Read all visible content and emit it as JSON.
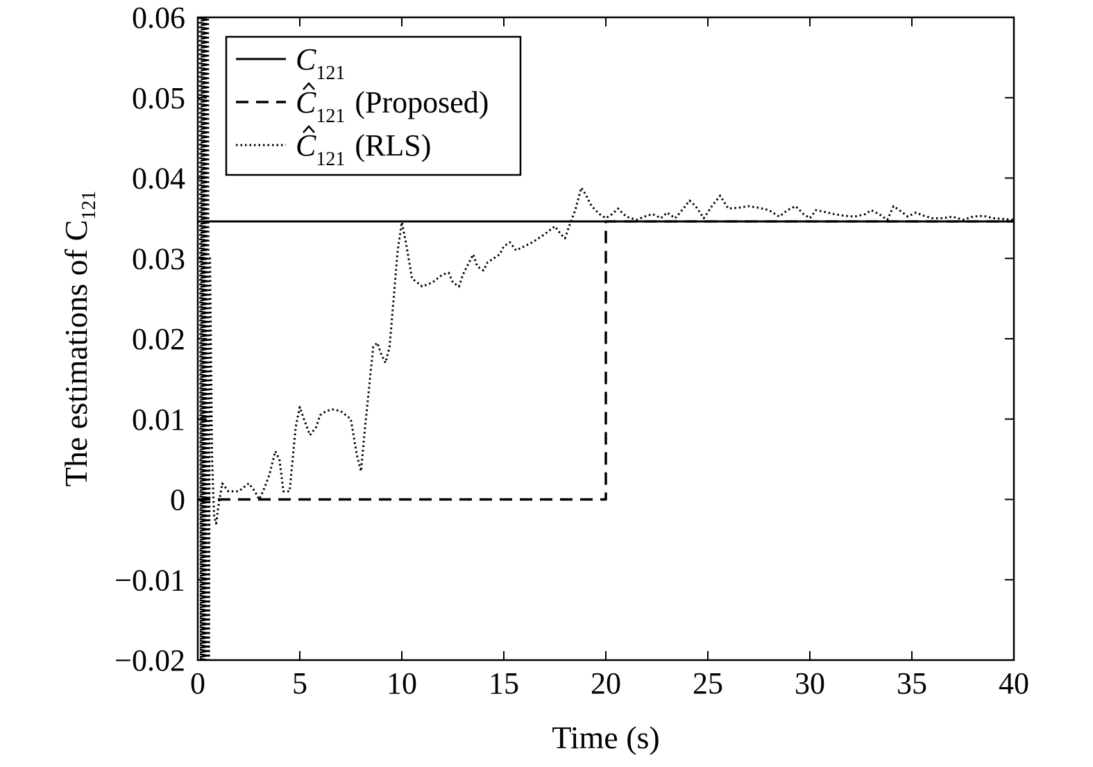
{
  "chart_data": {
    "type": "line",
    "xlabel": "Time (s)",
    "ylabel": "The estimations of C",
    "ylabel_subscript": "121",
    "xlim": [
      0,
      40
    ],
    "ylim": [
      -0.02,
      0.06
    ],
    "x_ticks": [
      0,
      5,
      10,
      15,
      20,
      25,
      30,
      35,
      40
    ],
    "x_tick_labels": [
      "0",
      "5",
      "10",
      "15",
      "20",
      "25",
      "30",
      "35",
      "40"
    ],
    "y_ticks": [
      -0.02,
      -0.01,
      0,
      0.01,
      0.02,
      0.03,
      0.04,
      0.05,
      0.06
    ],
    "y_tick_labels": [
      "−0.02",
      "−0.01",
      "0",
      "0.01",
      "0.02",
      "0.03",
      "0.04",
      "0.05",
      "0.06"
    ],
    "grid": false,
    "legend_position": "top-left",
    "series": [
      {
        "name": "C",
        "name_subscript": "121",
        "hat": false,
        "suffix": "",
        "style": "solid",
        "x": [
          0,
          40
        ],
        "y": [
          0.0346,
          0.0346
        ]
      },
      {
        "name": "C",
        "name_subscript": "121",
        "hat": true,
        "suffix": "(Proposed)",
        "style": "dashed",
        "x": [
          0,
          20,
          20,
          40
        ],
        "y": [
          0,
          0,
          0.0346,
          0.0346
        ]
      },
      {
        "name": "C",
        "name_subscript": "121",
        "hat": true,
        "suffix": "(RLS)",
        "style": "dotted",
        "x": [
          0.1,
          0.15,
          0.2,
          0.25,
          0.3,
          0.35,
          0.4,
          0.45,
          0.5,
          0.55,
          0.6,
          0.7,
          0.8,
          0.9,
          1.0,
          1.2,
          1.5,
          2.0,
          2.5,
          2.8,
          3.0,
          3.2,
          3.5,
          3.8,
          4.0,
          4.2,
          4.5,
          4.8,
          5.0,
          5.2,
          5.5,
          5.8,
          6.0,
          6.3,
          6.6,
          7.0,
          7.5,
          7.8,
          8.0,
          8.2,
          8.4,
          8.6,
          8.8,
          9.0,
          9.2,
          9.4,
          9.6,
          9.8,
          10.0,
          10.2,
          10.5,
          11.0,
          11.5,
          12.0,
          12.3,
          12.5,
          12.8,
          13.0,
          13.2,
          13.5,
          13.7,
          14.0,
          14.2,
          14.5,
          14.8,
          15.0,
          15.3,
          15.6,
          16.0,
          16.4,
          16.7,
          17.0,
          17.5,
          17.8,
          18.0,
          18.2,
          18.5,
          18.8,
          19.0,
          19.3,
          19.7,
          20.0,
          20.3,
          20.6,
          21.0,
          21.5,
          22.0,
          22.3,
          22.7,
          23.0,
          23.4,
          23.8,
          24.1,
          24.4,
          24.8,
          25.2,
          25.6,
          26.0,
          26.5,
          27.0,
          27.5,
          28.0,
          28.5,
          28.9,
          29.3,
          29.7,
          30.0,
          30.3,
          30.7,
          31.2,
          31.7,
          32.2,
          32.7,
          33.0,
          33.4,
          33.8,
          34.1,
          34.5,
          34.8,
          35.2,
          35.6,
          36.0,
          36.5,
          37.0,
          37.5,
          38.0,
          38.5,
          39.0,
          39.5,
          40.0
        ],
        "y": [
          0.06,
          -0.02,
          0.06,
          -0.02,
          0.06,
          -0.02,
          0.06,
          -0.02,
          0.06,
          -0.02,
          0.03,
          0.005,
          -0.002,
          -0.003,
          -0.001,
          0.002,
          0.001,
          0.001,
          0.002,
          0.001,
          0.0,
          0.001,
          0.003,
          0.006,
          0.005,
          0.001,
          0.001,
          0.009,
          0.0115,
          0.01,
          0.008,
          0.009,
          0.0105,
          0.011,
          0.0112,
          0.011,
          0.01,
          0.0055,
          0.0035,
          0.009,
          0.014,
          0.019,
          0.0195,
          0.018,
          0.017,
          0.019,
          0.025,
          0.031,
          0.0345,
          0.032,
          0.0275,
          0.0265,
          0.027,
          0.028,
          0.0282,
          0.027,
          0.0265,
          0.028,
          0.029,
          0.0305,
          0.029,
          0.0285,
          0.0295,
          0.03,
          0.0305,
          0.0315,
          0.032,
          0.031,
          0.0315,
          0.032,
          0.0325,
          0.033,
          0.034,
          0.033,
          0.0325,
          0.034,
          0.036,
          0.0388,
          0.038,
          0.0365,
          0.0355,
          0.035,
          0.0355,
          0.0362,
          0.0352,
          0.0348,
          0.0353,
          0.0355,
          0.035,
          0.0357,
          0.035,
          0.0362,
          0.0372,
          0.0365,
          0.035,
          0.0365,
          0.0378,
          0.0362,
          0.0363,
          0.0365,
          0.0363,
          0.036,
          0.0352,
          0.036,
          0.0365,
          0.0355,
          0.035,
          0.036,
          0.0358,
          0.0355,
          0.0353,
          0.0352,
          0.0355,
          0.036,
          0.0355,
          0.0348,
          0.0365,
          0.0358,
          0.0352,
          0.0357,
          0.0353,
          0.035,
          0.035,
          0.0352,
          0.0348,
          0.0352,
          0.0353,
          0.035,
          0.0349,
          0.0348
        ]
      }
    ]
  }
}
